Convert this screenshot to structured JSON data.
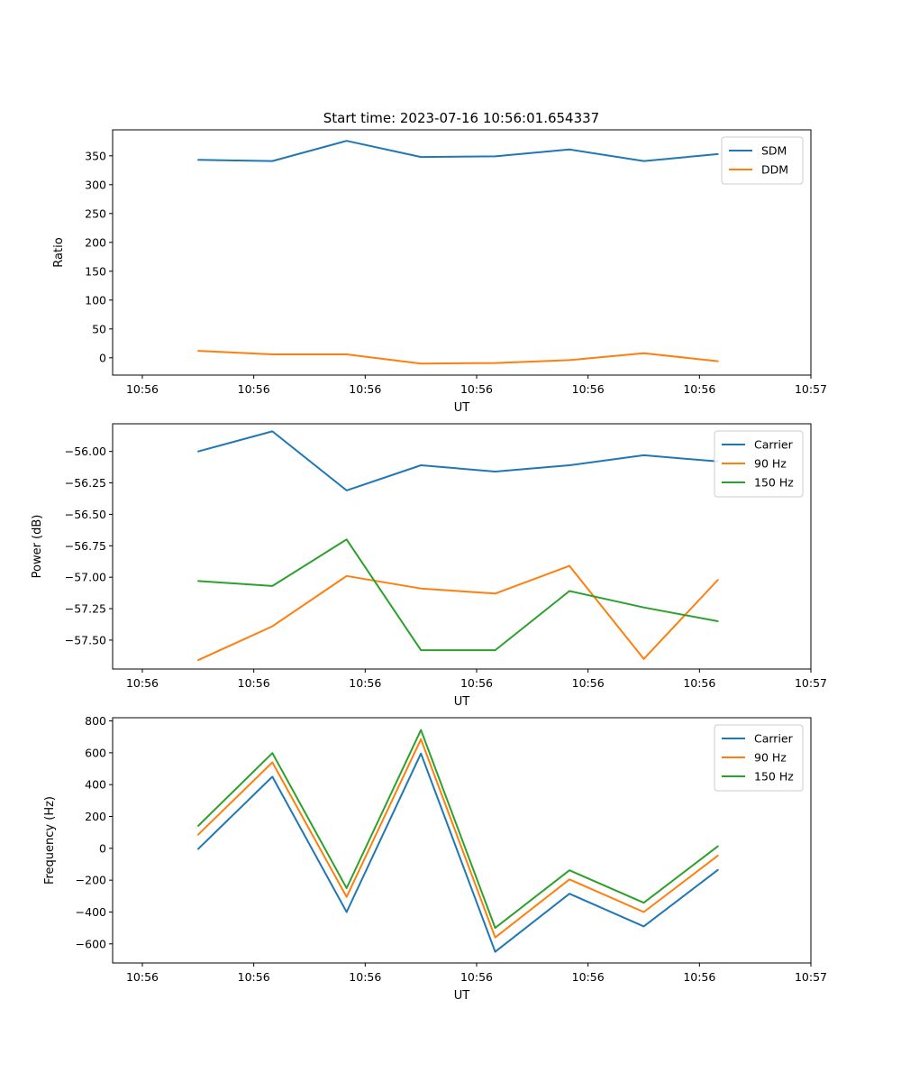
{
  "figure": {
    "title": "Start time: 2023-07-16 10:56:01.654337"
  },
  "chart_data": [
    {
      "type": "line",
      "ylabel": "Ratio",
      "xlabel": "UT",
      "xlim": [
        -0.4,
        9.0
      ],
      "ylim": [
        -30,
        395
      ],
      "yticks": [
        0,
        50,
        100,
        150,
        200,
        250,
        300,
        350
      ],
      "ytick_labels": [
        "0",
        "50",
        "100",
        "150",
        "200",
        "250",
        "300",
        "350"
      ],
      "xticks": [
        0,
        1.5,
        3,
        4.5,
        6,
        7.5,
        9
      ],
      "xtick_labels": [
        "10:56",
        "10:56",
        "10:56",
        "10:56",
        "10:56",
        "10:56",
        "10:57"
      ],
      "x": [
        0.75,
        1.75,
        2.75,
        3.75,
        4.75,
        5.75,
        6.75,
        7.75
      ],
      "legend_position": "upper right",
      "series": [
        {
          "name": "SDM",
          "color": "#1f77b4",
          "values": [
            343,
            341,
            376,
            348,
            349,
            361,
            341,
            353
          ]
        },
        {
          "name": "DDM",
          "color": "#ff7f0e",
          "values": [
            12,
            6,
            6,
            -10,
            -9,
            -4,
            8,
            -6
          ]
        }
      ]
    },
    {
      "type": "line",
      "ylabel": "Power (dB)",
      "xlabel": "UT",
      "xlim": [
        -0.4,
        9.0
      ],
      "ylim": [
        -57.73,
        -55.78
      ],
      "yticks": [
        -57.5,
        -57.25,
        -57.0,
        -56.75,
        -56.5,
        -56.25,
        -56.0
      ],
      "ytick_labels": [
        "−57.50",
        "−57.25",
        "−57.00",
        "−56.75",
        "−56.50",
        "−56.25",
        "−56.00"
      ],
      "xticks": [
        0,
        1.5,
        3,
        4.5,
        6,
        7.5,
        9
      ],
      "xtick_labels": [
        "10:56",
        "10:56",
        "10:56",
        "10:56",
        "10:56",
        "10:56",
        "10:57"
      ],
      "x": [
        0.75,
        1.75,
        2.75,
        3.75,
        4.75,
        5.75,
        6.75,
        7.75
      ],
      "legend_position": "upper right",
      "series": [
        {
          "name": "Carrier",
          "color": "#1f77b4",
          "values": [
            -56.0,
            -55.84,
            -56.31,
            -56.11,
            -56.16,
            -56.11,
            -56.03,
            -56.08
          ]
        },
        {
          "name": "90 Hz",
          "color": "#ff7f0e",
          "values": [
            -57.66,
            -57.39,
            -56.99,
            -57.09,
            -57.13,
            -56.91,
            -57.65,
            -57.02
          ]
        },
        {
          "name": "150 Hz",
          "color": "#2ca02c",
          "values": [
            -57.03,
            -57.07,
            -56.7,
            -57.58,
            -57.58,
            -57.11,
            -57.24,
            -57.35
          ]
        }
      ]
    },
    {
      "type": "line",
      "ylabel": "Frequency (Hz)",
      "xlabel": "UT",
      "xlim": [
        -0.4,
        9.0
      ],
      "ylim": [
        -720,
        820
      ],
      "yticks": [
        -600,
        -400,
        -200,
        0,
        200,
        400,
        600,
        800
      ],
      "ytick_labels": [
        "−600",
        "−400",
        "−200",
        "0",
        "200",
        "400",
        "600",
        "800"
      ],
      "xticks": [
        0,
        1.5,
        3,
        4.5,
        6,
        7.5,
        9
      ],
      "xtick_labels": [
        "10:56",
        "10:56",
        "10:56",
        "10:56",
        "10:56",
        "10:56",
        "10:57"
      ],
      "x": [
        0.75,
        1.75,
        2.75,
        3.75,
        4.75,
        5.75,
        6.75,
        7.75
      ],
      "legend_position": "upper right",
      "series": [
        {
          "name": "Carrier",
          "color": "#1f77b4",
          "values": [
            -5,
            450,
            -400,
            595,
            -650,
            -285,
            -490,
            -135
          ]
        },
        {
          "name": "90 Hz",
          "color": "#ff7f0e",
          "values": [
            85,
            540,
            -305,
            685,
            -560,
            -195,
            -400,
            -45
          ]
        },
        {
          "name": "150 Hz",
          "color": "#2ca02c",
          "values": [
            140,
            598,
            -250,
            743,
            -500,
            -138,
            -342,
            14
          ]
        }
      ]
    }
  ]
}
